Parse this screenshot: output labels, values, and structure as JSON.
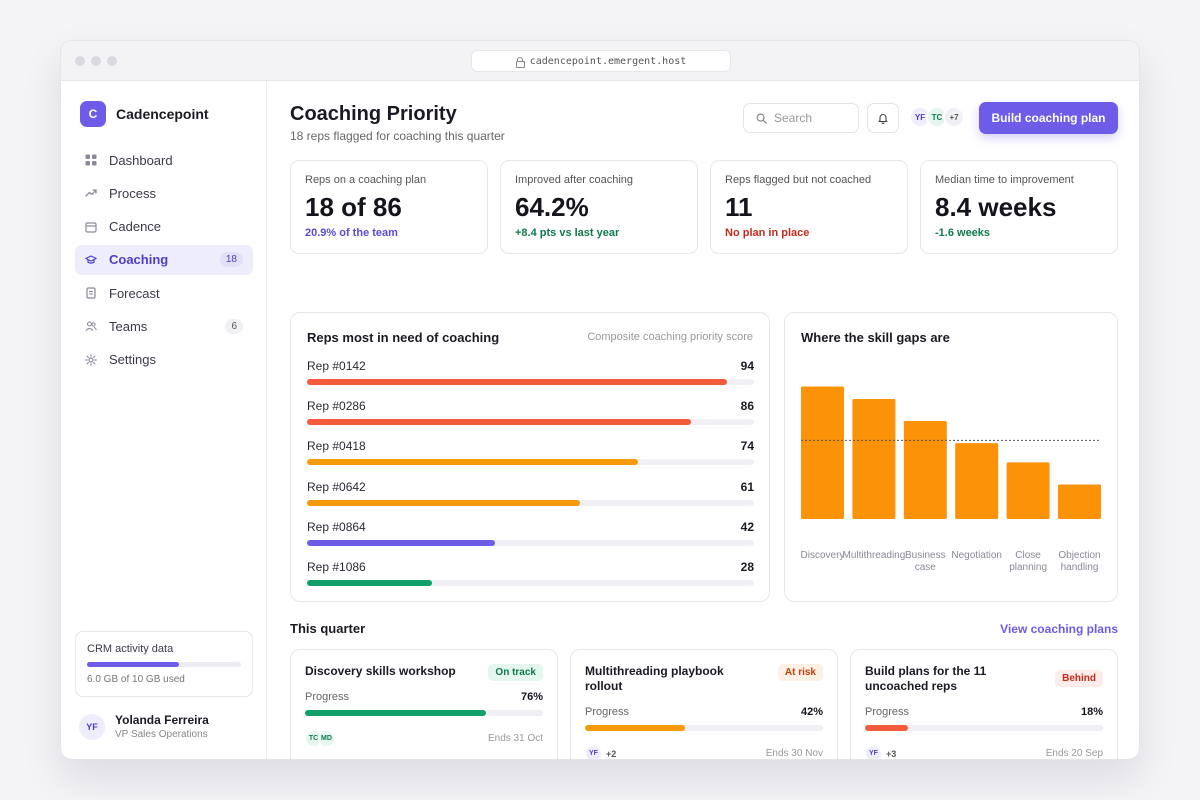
{
  "browser": {
    "url": "cadencepoint.emergent.host"
  },
  "brand": {
    "logo_letter": "C",
    "name": "Cadencepoint"
  },
  "nav": [
    {
      "label": "Dashboard",
      "icon": "grid-icon",
      "badge": ""
    },
    {
      "label": "Process",
      "icon": "trend-icon",
      "badge": ""
    },
    {
      "label": "Cadence",
      "icon": "calendar-icon",
      "badge": ""
    },
    {
      "label": "Coaching",
      "icon": "graduation-cap-icon",
      "badge": "18",
      "active": true
    },
    {
      "label": "Forecast",
      "icon": "document-icon",
      "badge": ""
    },
    {
      "label": "Teams",
      "icon": "users-icon",
      "badge": "6"
    },
    {
      "label": "Settings",
      "icon": "gear-icon",
      "badge": ""
    }
  ],
  "storage": {
    "title": "CRM activity data",
    "caption": "6.0 GB of 10 GB used",
    "used_fraction": 0.6
  },
  "user": {
    "initials": "YF",
    "name": "Yolanda Ferreira",
    "role": "VP Sales Operations"
  },
  "header": {
    "title": "Coaching Priority",
    "subtitle": "18 reps flagged for coaching this quarter",
    "search_placeholder": "Search",
    "avatars": [
      "YF",
      "TC"
    ],
    "avatars_more": "+7",
    "primary_button": "Build coaching plan"
  },
  "kpis": [
    {
      "label": "Reps on a coaching plan",
      "value": "18 of 86",
      "delta": "20.9% of the team",
      "delta_color": "#5b4bd6"
    },
    {
      "label": "Improved after coaching",
      "value": "64.2%",
      "delta": "+8.4 pts vs last year",
      "delta_color": "#0f7a4d"
    },
    {
      "label": "Reps flagged but not coached",
      "value": "11",
      "delta": "No plan in place",
      "delta_color": "#c42b1c"
    },
    {
      "label": "Median time to improvement",
      "value": "8.4 weeks",
      "delta": "-1.6 weeks",
      "delta_color": "#0f7a4d"
    }
  ],
  "reps_panel": {
    "title": "Reps most in need of coaching",
    "note": "Composite coaching priority score",
    "max": 100,
    "rows": [
      {
        "label": "Rep #0142",
        "score": "94",
        "value": 94,
        "color": "#f45a3c"
      },
      {
        "label": "Rep #0286",
        "score": "86",
        "value": 86,
        "color": "#f45a3c"
      },
      {
        "label": "Rep #0418",
        "score": "74",
        "value": 74,
        "color": "#f59a0a"
      },
      {
        "label": "Rep #0642",
        "score": "61",
        "value": 61,
        "color": "#f59a0a"
      },
      {
        "label": "Rep #0864",
        "score": "42",
        "value": 42,
        "color": "#6c5ce7"
      },
      {
        "label": "Rep #1086",
        "score": "28",
        "value": 28,
        "color": "#12a06a"
      }
    ]
  },
  "chart_data": {
    "type": "bar",
    "title": "Where the skill gaps are",
    "categories": [
      "Discovery",
      "Multithreading",
      "Business case",
      "Negotiation",
      "Close planning",
      "Objection handling"
    ],
    "values": [
      96,
      87,
      71,
      55,
      41,
      25
    ],
    "reference_line": 57,
    "ylim": [
      0,
      100
    ],
    "color": "#fb9208",
    "grid": false
  },
  "quarter": {
    "title": "This quarter",
    "link": "View coaching plans",
    "initiatives": [
      {
        "title": "Discovery skills workshop",
        "status": "On track",
        "status_fg": "#0f7a4d",
        "status_bg": "#e4f6ee",
        "progress_label": "Progress",
        "progress_text": "76%",
        "progress": 0.76,
        "color": "#12a06a",
        "avatars": [
          "TC",
          "MD"
        ],
        "more": "",
        "ends": "Ends 31 Oct"
      },
      {
        "title": "Multithreading playbook rollout",
        "status": "At risk",
        "status_fg": "#c2410c",
        "status_bg": "#fdf0e4",
        "progress_label": "Progress",
        "progress_text": "42%",
        "progress": 0.42,
        "color": "#f59a0a",
        "avatars": [
          "YF"
        ],
        "more": "+2",
        "ends": "Ends 30 Nov"
      },
      {
        "title": "Build plans for the 11 uncoached reps",
        "status": "Behind",
        "status_fg": "#c42b1c",
        "status_bg": "#fdecea",
        "progress_label": "Progress",
        "progress_text": "18%",
        "progress": 0.18,
        "color": "#f45a3c",
        "avatars": [
          "YF"
        ],
        "more": "+3",
        "ends": "Ends 20 Sep"
      }
    ]
  }
}
